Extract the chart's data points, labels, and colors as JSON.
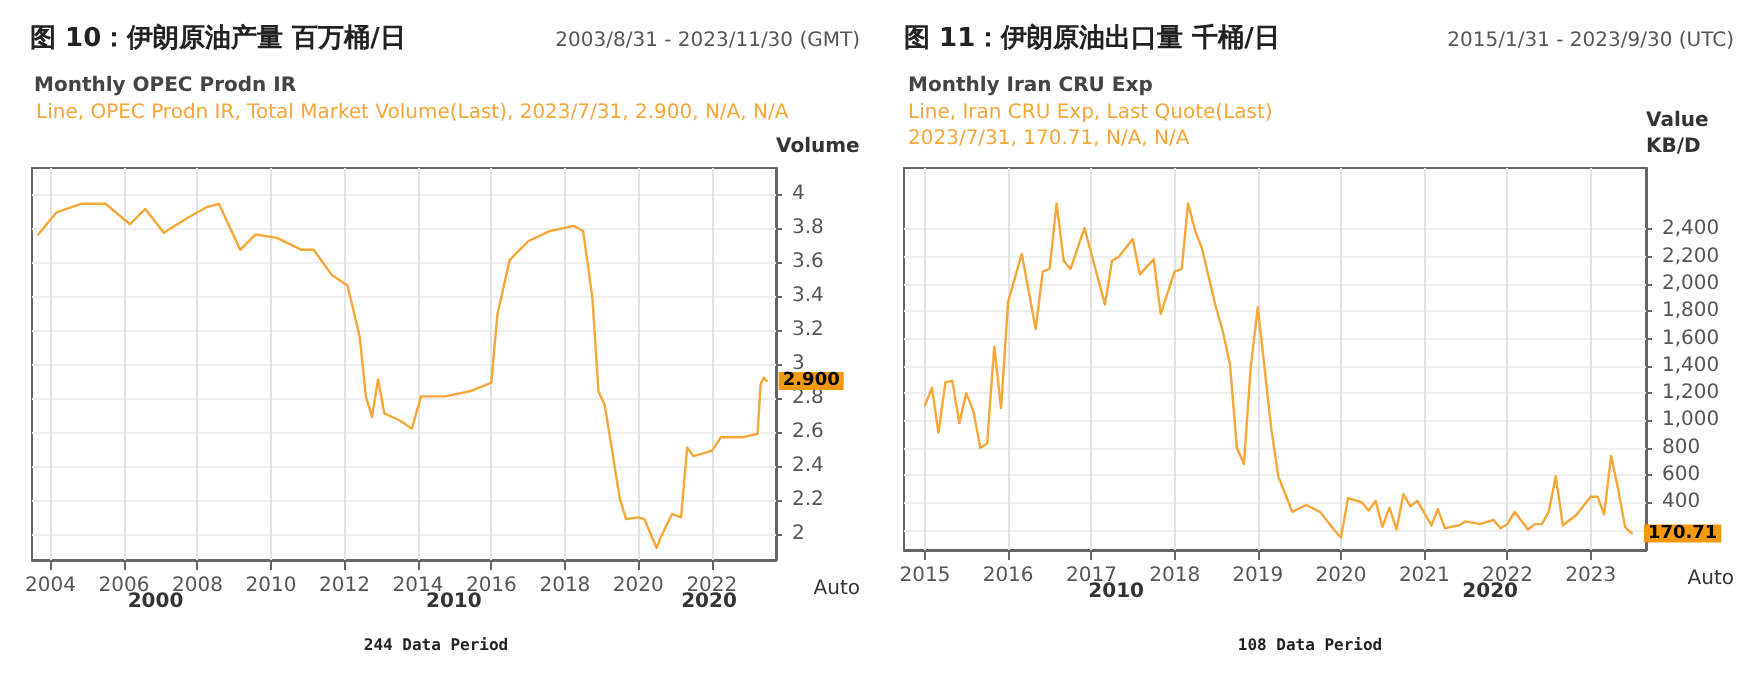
{
  "chart_data": [
    {
      "type": "line",
      "title": "图 10：伊朗原油产量 百万桶/日",
      "subtitle": "Monthly OPEC Prodn IR",
      "ylabel": "Volume",
      "annotations": [
        "2003/8/31 - 2023/11/30 (GMT)",
        "Line, OPEC Prodn IR, Total Market Volume(Last), 2023/7/31, 2.900, N/A, N/A",
        "244 Data Period",
        "Auto",
        "2000",
        "2010",
        "2020"
      ],
      "xlim": [
        "2003-07",
        "2023-10"
      ],
      "xticks": [
        "2004",
        "2006",
        "2008",
        "2010",
        "2012",
        "2014",
        "2016",
        "2018",
        "2020",
        "2022"
      ],
      "ylim": [
        1.85,
        4.15
      ],
      "yticks": [
        2,
        2.2,
        2.4,
        2.6,
        2.8,
        3,
        3.2,
        3.4,
        3.6,
        3.8,
        4
      ],
      "grid": true,
      "marker": "none",
      "line_style": "solid",
      "series": [
        {
          "color": "#f7a638",
          "x": [
            "2003-09",
            "2004-03",
            "2004-11",
            "2005-07",
            "2006-03",
            "2006-08",
            "2007-02",
            "2007-10",
            "2008-04",
            "2008-08",
            "2009-03",
            "2009-08",
            "2010-03",
            "2010-11",
            "2011-03",
            "2011-09",
            "2012-02",
            "2012-06",
            "2012-08",
            "2012-10",
            "2012-12",
            "2013-02",
            "2013-07",
            "2013-11",
            "2014-02",
            "2014-10",
            "2015-06",
            "2016-01",
            "2016-03",
            "2016-07",
            "2017-01",
            "2017-08",
            "2018-04",
            "2018-07",
            "2018-10",
            "2018-12",
            "2019-02",
            "2019-07",
            "2019-09",
            "2020-01",
            "2020-03",
            "2020-07",
            "2020-08",
            "2020-12",
            "2021-03",
            "2021-05",
            "2021-07",
            "2022-01",
            "2022-04",
            "2022-11",
            "2023-04",
            "2023-05",
            "2023-06",
            "2023-07"
          ],
          "values": [
            3.76,
            3.89,
            3.94,
            3.94,
            3.82,
            3.91,
            3.77,
            3.86,
            3.92,
            3.94,
            3.67,
            3.76,
            3.74,
            3.67,
            3.67,
            3.52,
            3.46,
            3.16,
            2.81,
            2.69,
            2.91,
            2.71,
            2.67,
            2.62,
            2.81,
            2.81,
            2.84,
            2.89,
            3.29,
            3.61,
            3.72,
            3.78,
            3.81,
            3.78,
            3.39,
            2.84,
            2.76,
            2.21,
            2.09,
            2.1,
            2.09,
            1.92,
            1.97,
            2.12,
            2.1,
            2.51,
            2.46,
            2.49,
            2.57,
            2.57,
            2.59,
            2.88,
            2.92,
            2.9
          ],
          "value_labels": [
            null,
            null,
            null,
            null,
            null,
            null,
            null,
            null,
            null,
            null,
            null,
            null,
            null,
            null,
            null,
            null,
            null,
            null,
            null,
            null,
            null,
            null,
            null,
            null,
            null,
            null,
            null,
            null,
            null,
            null,
            null,
            null,
            null,
            null,
            null,
            null,
            null,
            null,
            null,
            null,
            null,
            null,
            null,
            null,
            null,
            null,
            null,
            null,
            null,
            null,
            null,
            null,
            null,
            "2.900"
          ]
        }
      ]
    },
    {
      "type": "line",
      "title": "图 11：伊朗原油出口量 千桶/日",
      "subtitle": "Monthly Iran CRU Exp",
      "ylabel": "Value\nKB/D",
      "annotations": [
        "2015/1/31 - 2023/9/30 (UTC)",
        "Line, Iran CRU Exp, Last Quote(Last)\n2023/7/31, 170.71, N/A, N/A",
        "108 Data Period",
        "Auto",
        "2010",
        "2020"
      ],
      "xlim": [
        "2014-10",
        "2023-09"
      ],
      "xticks": [
        "2015",
        "2016",
        "2017",
        "2018",
        "2019",
        "2020",
        "2021",
        "2022",
        "2023"
      ],
      "ylim": [
        50,
        2850
      ],
      "yticks": [
        {
          "value": 200,
          "label": null
        },
        400,
        600,
        800,
        {
          "value": 1000,
          "label": "1,000"
        },
        {
          "value": 1200,
          "label": "1,200"
        },
        {
          "value": 1400,
          "label": "1,400"
        },
        {
          "value": 1600,
          "label": "1,600"
        },
        {
          "value": 1800,
          "label": "1,800"
        },
        {
          "value": 2000,
          "label": "2,000"
        },
        {
          "value": 2200,
          "label": "2,200"
        },
        {
          "value": 2400,
          "label": "2,400"
        }
      ],
      "grid": true,
      "marker": "none",
      "line_style": "solid",
      "series": [
        {
          "color": "#f7a638",
          "x": [
            "2015-01",
            "2015-02",
            "2015-03",
            "2015-04",
            "2015-05",
            "2015-06",
            "2015-07",
            "2015-08",
            "2015-09",
            "2015-10",
            "2015-11",
            "2015-12",
            "2016-01",
            "2016-03",
            "2016-05",
            "2016-06",
            "2016-07",
            "2016-08",
            "2016-09",
            "2016-10",
            "2016-12",
            "2017-03",
            "2017-04",
            "2017-05",
            "2017-07",
            "2017-08",
            "2017-10",
            "2017-11",
            "2018-01",
            "2018-02",
            "2018-03",
            "2018-04",
            "2018-05",
            "2018-07",
            "2018-08",
            "2018-09",
            "2018-10",
            "2018-11",
            "2018-12",
            "2019-01",
            "2019-03",
            "2019-04",
            "2019-06",
            "2019-08",
            "2019-10",
            "2019-12",
            "2020-01",
            "2020-02",
            "2020-04",
            "2020-05",
            "2020-06",
            "2020-07",
            "2020-08",
            "2020-09",
            "2020-10",
            "2020-11",
            "2020-12",
            "2021-02",
            "2021-03",
            "2021-04",
            "2021-06",
            "2021-07",
            "2021-09",
            "2021-11",
            "2021-12",
            "2022-01",
            "2022-02",
            "2022-04",
            "2022-05",
            "2022-06",
            "2022-07",
            "2022-08",
            "2022-09",
            "2022-11",
            "2023-01",
            "2023-02",
            "2023-03",
            "2023-04",
            "2023-05",
            "2023-06",
            "2023-07"
          ],
          "values": [
            1110,
            1240,
            910,
            1280,
            1290,
            980,
            1200,
            1070,
            800,
            830,
            1540,
            1090,
            1870,
            2220,
            1670,
            2090,
            2110,
            2590,
            2170,
            2110,
            2410,
            1850,
            2170,
            2200,
            2330,
            2070,
            2180,
            1780,
            2090,
            2110,
            2590,
            2390,
            2260,
            1830,
            1650,
            1410,
            800,
            680,
            1390,
            1830,
            940,
            590,
            330,
            380,
            330,
            200,
            140,
            430,
            400,
            340,
            410,
            220,
            360,
            200,
            460,
            370,
            410,
            230,
            350,
            210,
            230,
            260,
            240,
            270,
            210,
            240,
            330,
            200,
            240,
            240,
            330,
            590,
            230,
            310,
            440,
            440,
            310,
            740,
            500,
            220,
            170.71
          ],
          "value_labels": [
            null,
            null,
            null,
            null,
            null,
            null,
            null,
            null,
            null,
            null,
            null,
            null,
            null,
            null,
            null,
            null,
            null,
            null,
            null,
            null,
            null,
            null,
            null,
            null,
            null,
            null,
            null,
            null,
            null,
            null,
            null,
            null,
            null,
            null,
            null,
            null,
            null,
            null,
            null,
            null,
            null,
            null,
            null,
            null,
            null,
            null,
            null,
            null,
            null,
            null,
            null,
            null,
            null,
            null,
            null,
            null,
            null,
            null,
            null,
            null,
            null,
            null,
            null,
            null,
            null,
            null,
            null,
            null,
            null,
            null,
            null,
            null,
            null,
            null,
            null,
            null,
            null,
            null,
            null,
            null,
            "170.71"
          ]
        }
      ]
    }
  ]
}
